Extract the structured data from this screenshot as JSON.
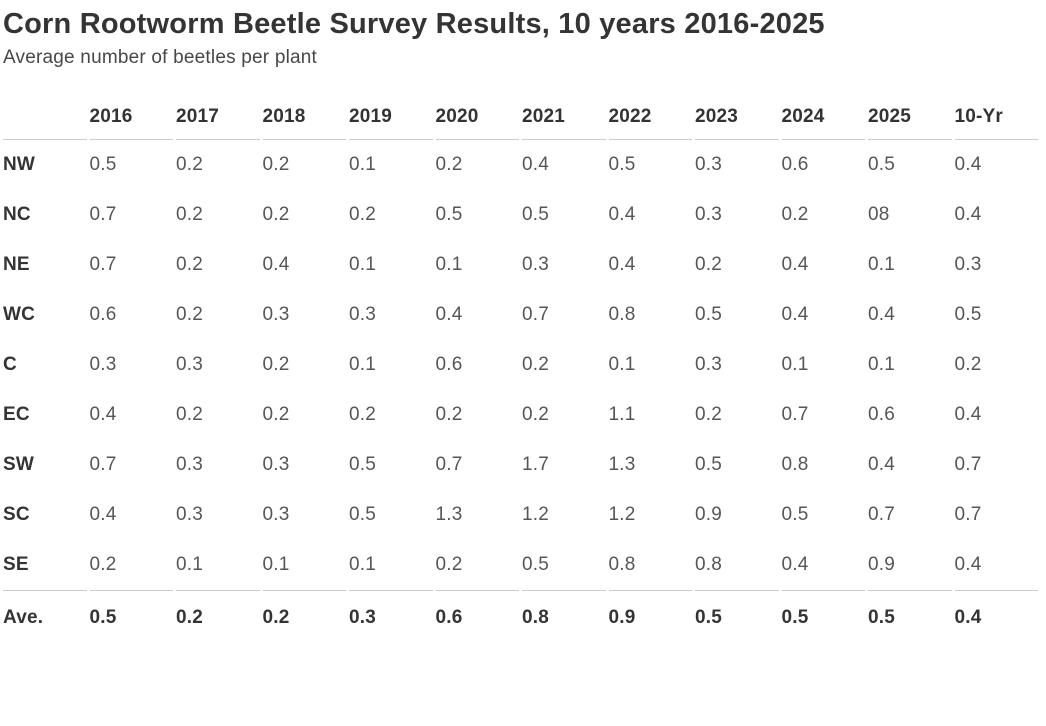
{
  "header": {
    "title": "Corn Rootworm Beetle Survey Results, 10 years 2016-2025",
    "subtitle": "Average number of beetles per plant"
  },
  "colors": {
    "title_text": "#343434",
    "subtitle_text": "#474747",
    "header_text": "#333333",
    "row_label_text": "#343434",
    "value_text": "#565656",
    "rule_line": "#cccccc",
    "background": "#ffffff"
  },
  "chart_data": {
    "type": "table",
    "title": "Corn Rootworm Beetle Survey Results, 10 years 2016-2025",
    "subtitle": "Average number of beetles per plant",
    "row_header_label": "",
    "columns": [
      "2016",
      "2017",
      "2018",
      "2019",
      "2020",
      "2021",
      "2022",
      "2023",
      "2024",
      "2025",
      "10-Yr"
    ],
    "rows": [
      {
        "label": "NW",
        "values": [
          "0.5",
          "0.2",
          "0.2",
          "0.1",
          "0.2",
          "0.4",
          "0.5",
          "0.3",
          "0.6",
          "0.5",
          "0.4"
        ]
      },
      {
        "label": "NC",
        "values": [
          "0.7",
          "0.2",
          "0.2",
          "0.2",
          "0.5",
          "0.5",
          "0.4",
          "0.3",
          "0.2",
          "08",
          "0.4"
        ]
      },
      {
        "label": "NE",
        "values": [
          "0.7",
          "0.2",
          "0.4",
          "0.1",
          "0.1",
          "0.3",
          "0.4",
          "0.2",
          "0.4",
          "0.1",
          "0.3"
        ]
      },
      {
        "label": "WC",
        "values": [
          "0.6",
          "0.2",
          "0.3",
          "0.3",
          "0.4",
          "0.7",
          "0.8",
          "0.5",
          "0.4",
          "0.4",
          "0.5"
        ]
      },
      {
        "label": "C",
        "values": [
          "0.3",
          "0.3",
          "0.2",
          "0.1",
          "0.6",
          "0.2",
          "0.1",
          "0.3",
          "0.1",
          "0.1",
          "0.2"
        ]
      },
      {
        "label": "EC",
        "values": [
          "0.4",
          "0.2",
          "0.2",
          "0.2",
          "0.2",
          "0.2",
          "1.1",
          "0.2",
          "0.7",
          "0.6",
          "0.4"
        ]
      },
      {
        "label": "SW",
        "values": [
          "0.7",
          "0.3",
          "0.3",
          "0.5",
          "0.7",
          "1.7",
          "1.3",
          "0.5",
          "0.8",
          "0.4",
          "0.7"
        ]
      },
      {
        "label": "SC",
        "values": [
          "0.4",
          "0.3",
          "0.3",
          "0.5",
          "1.3",
          "1.2",
          "1.2",
          "0.9",
          "0.5",
          "0.7",
          "0.7"
        ]
      },
      {
        "label": "SE",
        "values": [
          "0.2",
          "0.1",
          "0.1",
          "0.1",
          "0.2",
          "0.5",
          "0.8",
          "0.8",
          "0.4",
          "0.9",
          "0.4"
        ]
      }
    ],
    "summary_row": {
      "label": "Ave.",
      "values": [
        "0.5",
        "0.2",
        "0.2",
        "0.3",
        "0.6",
        "0.8",
        "0.9",
        "0.5",
        "0.5",
        "0.5",
        "0.4"
      ]
    }
  }
}
